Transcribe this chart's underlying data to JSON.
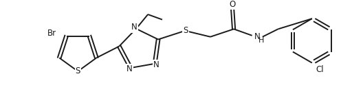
{
  "background_color": "#ffffff",
  "line_color": "#1a1a1a",
  "line_width": 1.4,
  "font_size": 8.5,
  "figsize": [
    5.28,
    1.4
  ],
  "dpi": 100,
  "xlim": [
    0,
    528
  ],
  "ylim": [
    0,
    140
  ]
}
